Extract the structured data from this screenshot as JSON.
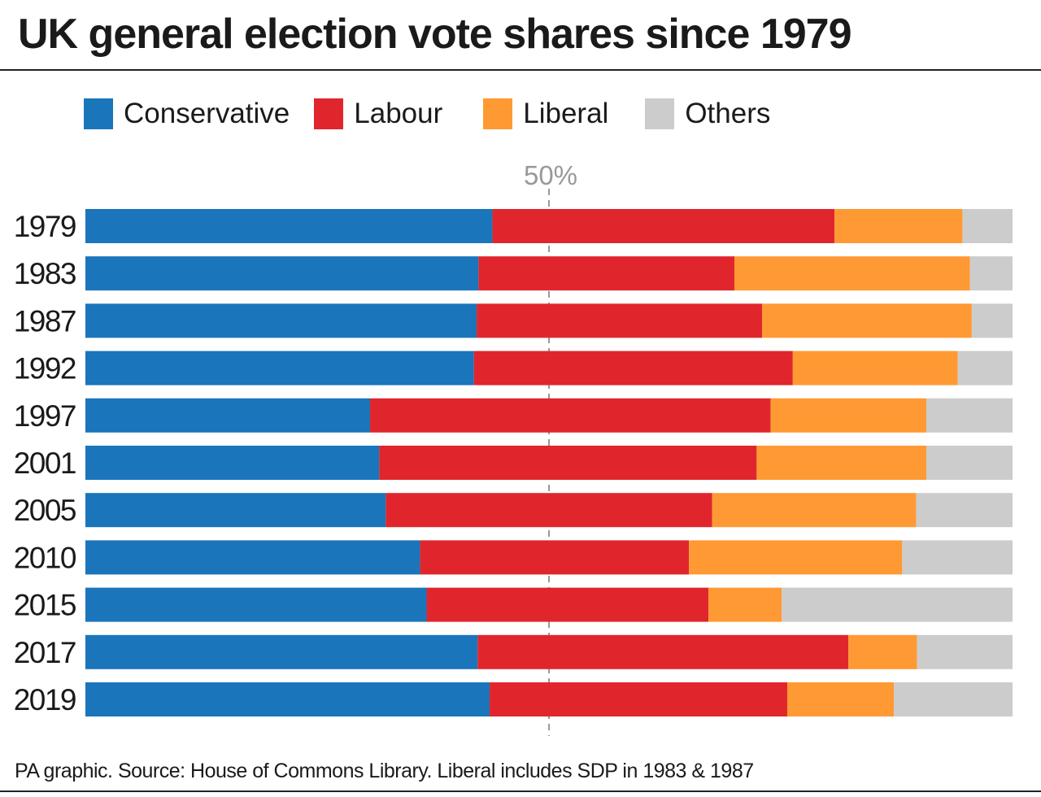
{
  "title": "UK general election vote shares since 1979",
  "footer": "PA graphic. Source: House of Commons Library. Liberal includes SDP in 1983 & 1987",
  "chart_data": {
    "type": "bar",
    "orientation": "horizontal",
    "stacked": true,
    "xlim": [
      0,
      100
    ],
    "reference_line": {
      "value": 50,
      "label": "50%"
    },
    "legend_position": "top",
    "categories": [
      "1979",
      "1983",
      "1987",
      "1992",
      "1997",
      "2001",
      "2005",
      "2010",
      "2015",
      "2017",
      "2019"
    ],
    "series": [
      {
        "name": "Conservative",
        "color": "#1a75bb",
        "values": [
          43.9,
          42.4,
          42.2,
          41.9,
          30.7,
          31.7,
          32.4,
          36.1,
          36.8,
          42.3,
          43.6
        ]
      },
      {
        "name": "Labour",
        "color": "#e0262c",
        "values": [
          36.9,
          27.6,
          30.8,
          34.4,
          43.2,
          40.7,
          35.2,
          29.0,
          30.4,
          40.0,
          32.1
        ]
      },
      {
        "name": "Liberal",
        "color": "#ff9933",
        "values": [
          13.8,
          25.4,
          22.6,
          17.8,
          16.8,
          18.3,
          22.0,
          23.0,
          7.9,
          7.4,
          11.5
        ]
      },
      {
        "name": "Others",
        "color": "#cccccc",
        "values": [
          5.4,
          4.6,
          4.4,
          5.9,
          9.3,
          9.3,
          10.4,
          11.9,
          24.9,
          10.3,
          12.8
        ]
      }
    ]
  }
}
